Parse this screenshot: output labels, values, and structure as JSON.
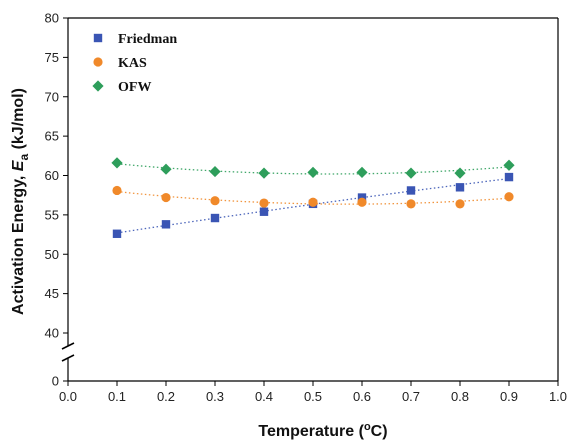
{
  "chart_data": {
    "type": "scatter",
    "xlabel": "Temperature (°C)",
    "ylabel": "Activation Energy, E_a (kJ/mol)",
    "ylabel_parts": {
      "prefix": "Activation Energy, ",
      "symbol": "E",
      "subscript": "a",
      "suffix": " (kJ/mol)"
    },
    "xlabel_parts": {
      "prefix": "Temperature (",
      "superscript": "o",
      "suffix": "C)"
    },
    "xlim": [
      0.0,
      1.0
    ],
    "ylim": [
      0,
      80
    ],
    "y_axis_break": [
      0,
      37
    ],
    "x_ticks": [
      "0.0",
      "0.1",
      "0.2",
      "0.3",
      "0.4",
      "0.5",
      "0.6",
      "0.7",
      "0.8",
      "0.9",
      "1.0"
    ],
    "y_ticks": [
      "0",
      "40",
      "45",
      "50",
      "55",
      "60",
      "65",
      "70",
      "75",
      "80"
    ],
    "grid": false,
    "legend_position": "top-left",
    "trendlines": "dotted",
    "series": [
      {
        "name": "Friedman",
        "marker": "square",
        "color": "#3a55b4",
        "x": [
          0.1,
          0.2,
          0.3,
          0.4,
          0.5,
          0.6,
          0.7,
          0.8,
          0.9
        ],
        "y": [
          52.6,
          53.8,
          54.6,
          55.4,
          56.4,
          57.2,
          58.1,
          58.5,
          59.8
        ]
      },
      {
        "name": "KAS",
        "marker": "circle",
        "color": "#f0892a",
        "x": [
          0.1,
          0.2,
          0.3,
          0.4,
          0.5,
          0.6,
          0.7,
          0.8,
          0.9
        ],
        "y": [
          58.1,
          57.2,
          56.8,
          56.5,
          56.6,
          56.6,
          56.4,
          56.4,
          57.3
        ]
      },
      {
        "name": "OFW",
        "marker": "diamond",
        "color": "#2e9e5b",
        "x": [
          0.1,
          0.2,
          0.3,
          0.4,
          0.5,
          0.6,
          0.7,
          0.8,
          0.9
        ],
        "y": [
          61.6,
          60.8,
          60.5,
          60.3,
          60.4,
          60.4,
          60.3,
          60.3,
          61.3
        ]
      }
    ]
  }
}
